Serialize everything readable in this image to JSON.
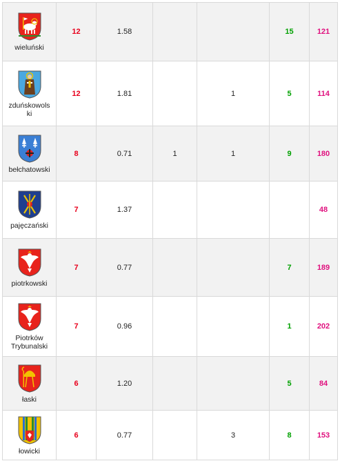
{
  "rows": [
    {
      "name": "wieluński",
      "a": "12",
      "b": "1.58",
      "c": "",
      "d": "",
      "e": "15",
      "f": "121",
      "crest": "lamb-crest-icon"
    },
    {
      "name": "zduńskowolski",
      "a": "12",
      "b": "1.81",
      "c": "",
      "d": "1",
      "e": "5",
      "f": "114",
      "crest": "saint-crest-icon"
    },
    {
      "name": "bełchatowski",
      "a": "8",
      "b": "0.71",
      "c": "1",
      "d": "1",
      "e": "9",
      "f": "180",
      "crest": "lilies-crest-icon"
    },
    {
      "name": "pajęczański",
      "a": "7",
      "b": "1.37",
      "c": "",
      "d": "",
      "e": "",
      "f": "48",
      "crest": "cross-crest-icon"
    },
    {
      "name": "piotrkowski",
      "a": "7",
      "b": "0.77",
      "c": "",
      "d": "",
      "e": "7",
      "f": "189",
      "crest": "eagle-crest-icon"
    },
    {
      "name": "Piotrków Trybunalski",
      "a": "7",
      "b": "0.96",
      "c": "",
      "d": "",
      "e": "1",
      "f": "202",
      "crest": "eagle-crest-icon"
    },
    {
      "name": "łaski",
      "a": "6",
      "b": "1.20",
      "c": "",
      "d": "",
      "e": "5",
      "f": "84",
      "crest": "bishop-crest-icon"
    },
    {
      "name": "łowicki",
      "a": "6",
      "b": "0.77",
      "c": "",
      "d": "3",
      "e": "8",
      "f": "153",
      "crest": "stripes-crest-icon"
    }
  ]
}
